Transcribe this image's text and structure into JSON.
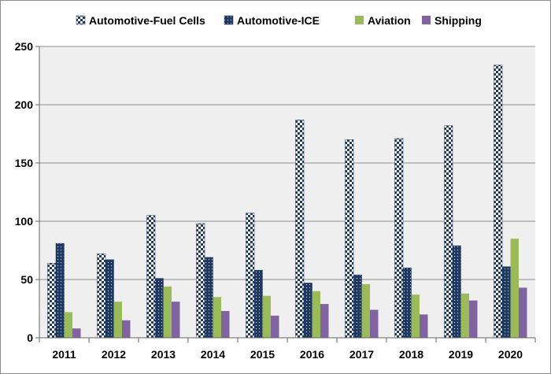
{
  "chart_data": {
    "type": "bar",
    "categories": [
      "2011",
      "2012",
      "2013",
      "2014",
      "2015",
      "2016",
      "2017",
      "2018",
      "2019",
      "2020"
    ],
    "series": [
      {
        "name": "Automotive-Fuel Cells",
        "values": [
          64,
          72,
          105,
          98,
          107,
          187,
          170,
          171,
          182,
          234
        ],
        "color": "#1f3864",
        "pattern": "checker"
      },
      {
        "name": "Automotive-ICE",
        "values": [
          81,
          67,
          51,
          69,
          58,
          47,
          54,
          60,
          79,
          61
        ],
        "color": "#1f3864",
        "pattern": "dots"
      },
      {
        "name": "Aviation",
        "values": [
          22,
          31,
          44,
          35,
          36,
          40,
          46,
          37,
          38,
          85
        ],
        "color": "#9bbb59",
        "pattern": "solid"
      },
      {
        "name": "Shipping",
        "values": [
          8,
          15,
          31,
          23,
          19,
          29,
          24,
          20,
          32,
          43
        ],
        "color": "#8064a2",
        "pattern": "solid"
      }
    ],
    "ylim": [
      0,
      250
    ],
    "yticks": [
      "0",
      "50",
      "100",
      "150",
      "200",
      "250"
    ],
    "grid": "horizontal",
    "legend_position": "top",
    "plot_background": "#efefef"
  }
}
